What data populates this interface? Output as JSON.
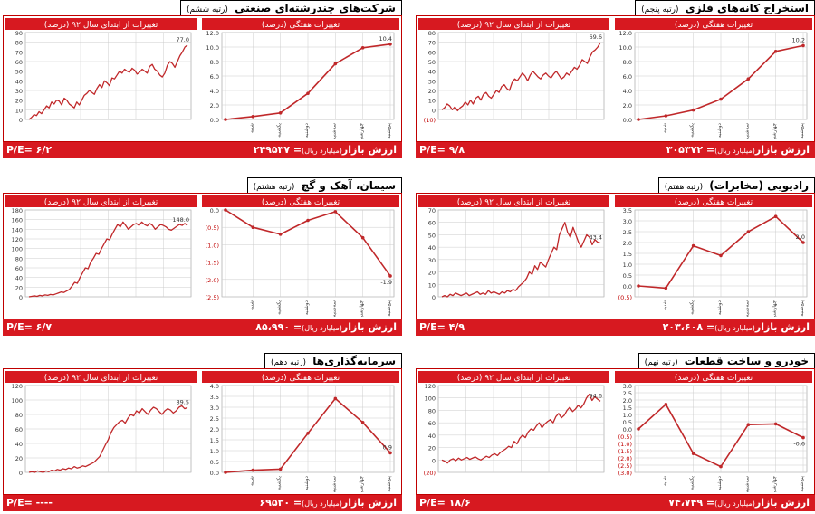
{
  "footer_labels": {
    "market_value": "ارزش بازار",
    "unit": "(میلیارد ریال)",
    "eq": "="
  },
  "subtitles": {
    "ytd": "تغییرات از ابتدای سال ۹۲ (درصد)",
    "weekly": "تغییرات هفتگی (درصد)"
  },
  "colors": {
    "accent": "#d71920",
    "line": "#c0282a",
    "grid": "#cccccc",
    "neg": "#c00000"
  },
  "week_labels": [
    "شنبه",
    "یکشنبه",
    "دوشنبه",
    "سه‌شنبه",
    "چهارشنبه",
    "پنج‌شنبه"
  ],
  "panels": [
    {
      "title": "شرکت‌های چندرشته‌ای صنعتی",
      "rank": "(رتبه ششم)",
      "market_value": "۲۴۹۵۳۷",
      "pe": "P/E= ۶/۲",
      "chart_data": [
        {
          "type": "line",
          "title": "تغییرات از ابتدای سال ۹۲ (درصد)",
          "yticks": [
            0,
            10,
            20,
            30,
            40,
            50,
            60,
            70,
            80,
            90
          ],
          "ylim": [
            0,
            90
          ],
          "end_label": "77.0",
          "values": [
            0,
            2,
            5,
            4,
            8,
            6,
            10,
            14,
            12,
            18,
            16,
            20,
            19,
            15,
            22,
            20,
            16,
            14,
            12,
            18,
            15,
            20,
            25,
            27,
            30,
            28,
            26,
            32,
            36,
            33,
            40,
            38,
            35,
            43,
            42,
            46,
            50,
            48,
            52,
            50,
            49,
            53,
            51,
            47,
            49,
            52,
            50,
            48,
            55,
            57,
            52,
            50,
            46,
            44,
            48,
            56,
            60,
            58,
            54,
            60,
            66,
            70,
            75,
            77
          ]
        },
        {
          "type": "line",
          "title": "تغییرات هفتگی (درصد)",
          "yticks": [
            "0.0",
            "2.0",
            "4.0",
            "6.0",
            "8.0",
            "10.0",
            "12.0"
          ],
          "ylim": [
            0,
            12
          ],
          "end_label": "10.4",
          "values": [
            0,
            0.4,
            0.9,
            3.6,
            7.7,
            9.9,
            10.4
          ]
        }
      ]
    },
    {
      "title": "استخراج کانه‌های فلزی",
      "rank": "(رتبه پنجم)",
      "market_value": "۳۰۵۳۷۲",
      "pe": "P/E= ۹/۸",
      "chart_data": [
        {
          "type": "line",
          "title": "تغییرات از ابتدای سال ۹۲ (درصد)",
          "yticks": [
            "(10)",
            "0",
            "10",
            "20",
            "30",
            "40",
            "50",
            "60",
            "70",
            "80"
          ],
          "ylim": [
            -10,
            80
          ],
          "end_label": "69.6",
          "values": [
            0,
            2,
            6,
            4,
            0,
            3,
            -1,
            2,
            4,
            8,
            5,
            10,
            6,
            12,
            14,
            10,
            16,
            18,
            14,
            12,
            16,
            20,
            18,
            24,
            26,
            22,
            20,
            28,
            32,
            30,
            34,
            38,
            35,
            30,
            36,
            40,
            37,
            34,
            32,
            36,
            38,
            35,
            33,
            37,
            40,
            36,
            32,
            34,
            38,
            36,
            40,
            44,
            42,
            46,
            52,
            50,
            48,
            55,
            60,
            62,
            65,
            69.6
          ]
        },
        {
          "type": "line",
          "title": "تغییرات هفتگی (درصد)",
          "yticks": [
            "0.0",
            "2.0",
            "4.0",
            "6.0",
            "8.0",
            "10.0",
            "12.0"
          ],
          "ylim": [
            0,
            12
          ],
          "end_label": "10.2",
          "values": [
            0,
            0.5,
            1.3,
            2.8,
            5.6,
            9.4,
            10.2
          ]
        }
      ]
    },
    {
      "title": "سیمان، آهک و گچ",
      "rank": "(رتبه هشتم)",
      "market_value": "۸۵،۹۹۰",
      "pe": "P/E= ۶/۷",
      "chart_data": [
        {
          "type": "line",
          "title": "تغییرات از ابتدای سال ۹۲ (درصد)",
          "yticks": [
            0,
            20,
            40,
            60,
            80,
            100,
            120,
            140,
            160,
            180
          ],
          "ylim": [
            0,
            180
          ],
          "end_label": "148.0",
          "values": [
            0,
            1,
            2,
            1,
            3,
            2,
            4,
            3,
            5,
            4,
            6,
            8,
            10,
            9,
            12,
            15,
            22,
            30,
            28,
            40,
            50,
            60,
            58,
            72,
            80,
            90,
            88,
            100,
            110,
            120,
            118,
            130,
            140,
            150,
            145,
            155,
            148,
            140,
            145,
            150,
            152,
            148,
            155,
            150,
            147,
            152,
            148,
            140,
            145,
            150,
            148,
            145,
            140,
            138,
            142,
            146,
            150,
            148,
            152,
            148
          ]
        },
        {
          "type": "line",
          "title": "تغییرات هفتگی (درصد)",
          "yticks": [
            "0.0",
            "(0.5)",
            "(1.0)",
            "(1.5)",
            "(2.0)",
            "(2.5)"
          ],
          "ylim": [
            -2.5,
            0
          ],
          "end_label": "-1.9",
          "values": [
            0,
            -0.5,
            -0.7,
            -0.3,
            -0.05,
            -0.8,
            -1.9
          ]
        }
      ]
    },
    {
      "title": "رادیویی (مخابرات)",
      "rank": "(رتبه هفتم)",
      "market_value": "۲۰۳،۶۰۸",
      "pe": "P/E= ۴/۹",
      "chart_data": [
        {
          "type": "line",
          "title": "تغییرات از ابتدای سال ۹۲ (درصد)",
          "yticks": [
            0,
            10,
            20,
            30,
            40,
            50,
            60,
            70
          ],
          "ylim": [
            0,
            70
          ],
          "end_label": "43.4",
          "values": [
            0,
            1,
            0,
            2,
            1,
            3,
            2,
            1,
            2,
            3,
            1,
            2,
            3,
            4,
            2,
            3,
            2,
            5,
            3,
            4,
            3,
            2,
            4,
            3,
            5,
            4,
            6,
            5,
            8,
            10,
            12,
            15,
            20,
            18,
            25,
            22,
            28,
            26,
            24,
            30,
            35,
            40,
            38,
            50,
            55,
            60,
            52,
            48,
            56,
            50,
            44,
            40,
            45,
            50,
            48,
            42,
            46,
            44,
            43.4
          ]
        },
        {
          "type": "line",
          "title": "تغییرات هفتگی (درصد)",
          "yticks": [
            "(0.5)",
            "0.0",
            "0.5",
            "1.0",
            "1.5",
            "2.0",
            "2.5",
            "3.0",
            "3.5"
          ],
          "ylim": [
            -0.5,
            3.5
          ],
          "end_label": "2.0",
          "values": [
            0,
            -0.1,
            1.85,
            1.4,
            2.5,
            3.2,
            2.0
          ]
        }
      ]
    },
    {
      "title": "سرمایه‌گذاری‌ها",
      "rank": "(رتبه دهم)",
      "market_value": "۶۹۵۳۰",
      "pe": "P/E= ----",
      "chart_data": [
        {
          "type": "line",
          "title": "تغییرات از ابتدای سال ۹۲ (درصد)",
          "yticks": [
            0,
            20,
            40,
            60,
            80,
            100,
            120
          ],
          "ylim": [
            0,
            120
          ],
          "end_label": "89.5",
          "values": [
            0,
            1,
            0,
            2,
            1,
            0,
            2,
            1,
            3,
            2,
            4,
            3,
            5,
            4,
            6,
            5,
            8,
            6,
            7,
            9,
            8,
            10,
            12,
            14,
            18,
            22,
            30,
            38,
            45,
            55,
            62,
            66,
            70,
            72,
            68,
            75,
            80,
            78,
            85,
            82,
            88,
            84,
            80,
            86,
            90,
            88,
            84,
            80,
            85,
            88,
            86,
            82,
            85,
            90,
            92,
            88,
            89.5
          ]
        },
        {
          "type": "line",
          "title": "تغییرات هفتگی (درصد)",
          "yticks": [
            "0.0",
            "0.5",
            "1.0",
            "1.5",
            "2.0",
            "2.5",
            "3.0",
            "3.5",
            "4.0"
          ],
          "ylim": [
            0,
            4
          ],
          "end_label": "0.9",
          "values": [
            0,
            0.1,
            0.15,
            1.8,
            3.4,
            2.3,
            0.9
          ]
        }
      ]
    },
    {
      "title": "خودرو و ساخت قطعات",
      "rank": "(رتبه نهم)",
      "market_value": "۷۴،۷۴۹",
      "pe": "P/E= ۱۸/۶",
      "chart_data": [
        {
          "type": "line",
          "title": "تغییرات از ابتدای سال ۹۲ (درصد)",
          "yticks": [
            "(20)",
            "0",
            "20",
            "40",
            "60",
            "80",
            "100",
            "120"
          ],
          "ylim": [
            -20,
            120
          ],
          "end_label": "94.6",
          "values": [
            0,
            -2,
            -5,
            0,
            2,
            -1,
            3,
            0,
            2,
            4,
            1,
            3,
            5,
            2,
            0,
            3,
            6,
            4,
            8,
            10,
            7,
            12,
            15,
            18,
            22,
            20,
            30,
            26,
            35,
            40,
            36,
            45,
            50,
            48,
            55,
            60,
            52,
            58,
            62,
            65,
            60,
            70,
            75,
            68,
            72,
            80,
            85,
            78,
            82,
            88,
            84,
            90,
            100,
            106,
            96,
            102,
            98,
            94.6
          ]
        },
        {
          "type": "line",
          "title": "تغییرات هفتگی (درصد)",
          "yticks": [
            "(3.0)",
            "(2.5)",
            "(2.0)",
            "(1.5)",
            "(1.0)",
            "(0.5)",
            "0.0",
            "0.5",
            "1.0",
            "1.5",
            "2.0",
            "2.5",
            "3.0"
          ],
          "ylim": [
            -3,
            3
          ],
          "end_label": "-0.6",
          "values": [
            0,
            1.7,
            -1.7,
            -2.6,
            0.3,
            0.35,
            -0.6
          ]
        }
      ]
    }
  ]
}
